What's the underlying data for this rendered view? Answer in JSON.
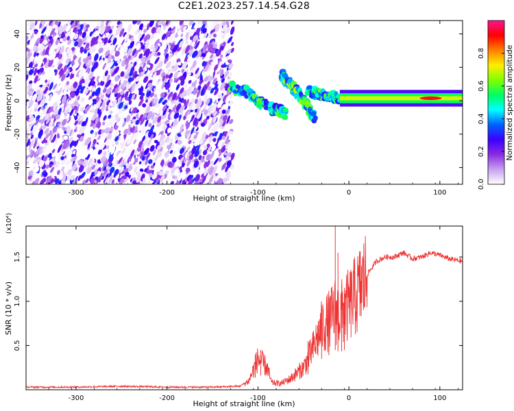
{
  "title": "C2E1.2023.257.14.54.G28",
  "chart_data": [
    {
      "type": "heatmap",
      "name": "spectrogram",
      "xlabel": "Height of straight line (km)",
      "ylabel": "Frequency (Hz)",
      "xlim": [
        -355,
        125
      ],
      "ylim": [
        -50,
        48
      ],
      "xticks": [
        -300,
        -200,
        -100,
        0,
        100
      ],
      "xtick_labels": [
        "-300",
        "-200",
        "-100",
        "0",
        "100"
      ],
      "yticks": [
        -40,
        -20,
        0,
        20,
        40
      ],
      "ytick_labels": [
        "-40",
        "-20",
        "0",
        "20",
        "40"
      ],
      "grid": false,
      "colorbar": {
        "label": "Normalized spectral amplitude",
        "range": [
          0,
          1
        ],
        "ticks": [
          0.0,
          0.2,
          0.4,
          0.6,
          0.8
        ],
        "tick_labels": [
          "0.0",
          "0.2",
          "0.4",
          "0.6",
          "0.8"
        ],
        "colors": [
          "#ffffff",
          "#c8a0f0",
          "#8a2be2",
          "#3c00ff",
          "#0060ff",
          "#00ffff",
          "#00ff60",
          "#80ff00",
          "#ffee00",
          "#ff8000",
          "#ff0000",
          "#ff1493"
        ]
      },
      "features": [
        {
          "label": "broadband noise",
          "x_range": [
            -355,
            -128
          ],
          "y_range": [
            -50,
            48
          ],
          "amplitude": 0.15
        },
        {
          "label": "descending trace 1",
          "points": [
            [
              -130,
              8
            ],
            [
              -110,
              5
            ],
            [
              -100,
              0
            ],
            [
              -85,
              -5
            ],
            [
              -75,
              -6
            ],
            [
              -70,
              -8
            ]
          ],
          "amplitude": 0.45
        },
        {
          "label": "descending trace 2",
          "points": [
            [
              -75,
              16
            ],
            [
              -65,
              10
            ],
            [
              -55,
              4
            ],
            [
              -45,
              -4
            ],
            [
              -38,
              -10
            ]
          ],
          "amplitude": 0.5
        },
        {
          "label": "trace segment 3",
          "points": [
            [
              -45,
              6
            ],
            [
              -35,
              4
            ],
            [
              -25,
              3
            ],
            [
              -10,
              2
            ]
          ],
          "amplitude": 0.45
        },
        {
          "label": "steady line",
          "x_range": [
            -10,
            125
          ],
          "y_center": 1.5,
          "amplitude": 0.6
        },
        {
          "label": "peak",
          "x": 90,
          "y": 1.5,
          "amplitude": 0.9
        }
      ]
    },
    {
      "type": "line",
      "name": "snr",
      "xlabel": "Height of straight line (km)",
      "ylabel": "SNR (10 * v/v)",
      "y_multiplier": "(x10⁴)",
      "xlim": [
        -355,
        125
      ],
      "ylim": [
        0,
        1.85
      ],
      "xticks": [
        -300,
        -200,
        -100,
        0,
        100
      ],
      "xtick_labels": [
        "-300",
        "-200",
        "-100",
        "0",
        "100"
      ],
      "yticks": [
        0.5,
        1.0,
        1.5
      ],
      "ytick_labels": [
        "0.5",
        "1.0",
        "1.5"
      ],
      "color": "#ee3333",
      "series_envelope": [
        {
          "x": -355,
          "y": 0.03
        },
        {
          "x": -300,
          "y": 0.03
        },
        {
          "x": -250,
          "y": 0.04
        },
        {
          "x": -200,
          "y": 0.03
        },
        {
          "x": -150,
          "y": 0.03
        },
        {
          "x": -120,
          "y": 0.04
        },
        {
          "x": -110,
          "y": 0.1
        },
        {
          "x": -100,
          "y": 0.35
        },
        {
          "x": -90,
          "y": 0.25
        },
        {
          "x": -85,
          "y": 0.08
        },
        {
          "x": -75,
          "y": 0.07
        },
        {
          "x": -65,
          "y": 0.12
        },
        {
          "x": -50,
          "y": 0.25
        },
        {
          "x": -40,
          "y": 0.45
        },
        {
          "x": -30,
          "y": 0.7
        },
        {
          "x": -20,
          "y": 0.8
        },
        {
          "x": -15,
          "y": 0.9
        },
        {
          "x": -10,
          "y": 0.85
        },
        {
          "x": 0,
          "y": 0.95
        },
        {
          "x": 10,
          "y": 1.1
        },
        {
          "x": 20,
          "y": 1.3
        },
        {
          "x": 30,
          "y": 1.45
        },
        {
          "x": 40,
          "y": 1.5
        },
        {
          "x": 50,
          "y": 1.5
        },
        {
          "x": 60,
          "y": 1.55
        },
        {
          "x": 70,
          "y": 1.48
        },
        {
          "x": 80,
          "y": 1.5
        },
        {
          "x": 90,
          "y": 1.55
        },
        {
          "x": 100,
          "y": 1.52
        },
        {
          "x": 110,
          "y": 1.48
        },
        {
          "x": 125,
          "y": 1.45
        }
      ],
      "spikes": [
        {
          "x": -15,
          "y": 1.85
        },
        {
          "x": -12,
          "y": 1.55
        },
        {
          "x": -22,
          "y": 1.0
        },
        {
          "x": -30,
          "y": 0.95
        },
        {
          "x": -8,
          "y": 1.2
        },
        {
          "x": -5,
          "y": 1.15
        },
        {
          "x": -97,
          "y": 0.45
        },
        {
          "x": -103,
          "y": 0.4
        },
        {
          "x": -45,
          "y": 0.55
        }
      ]
    }
  ]
}
